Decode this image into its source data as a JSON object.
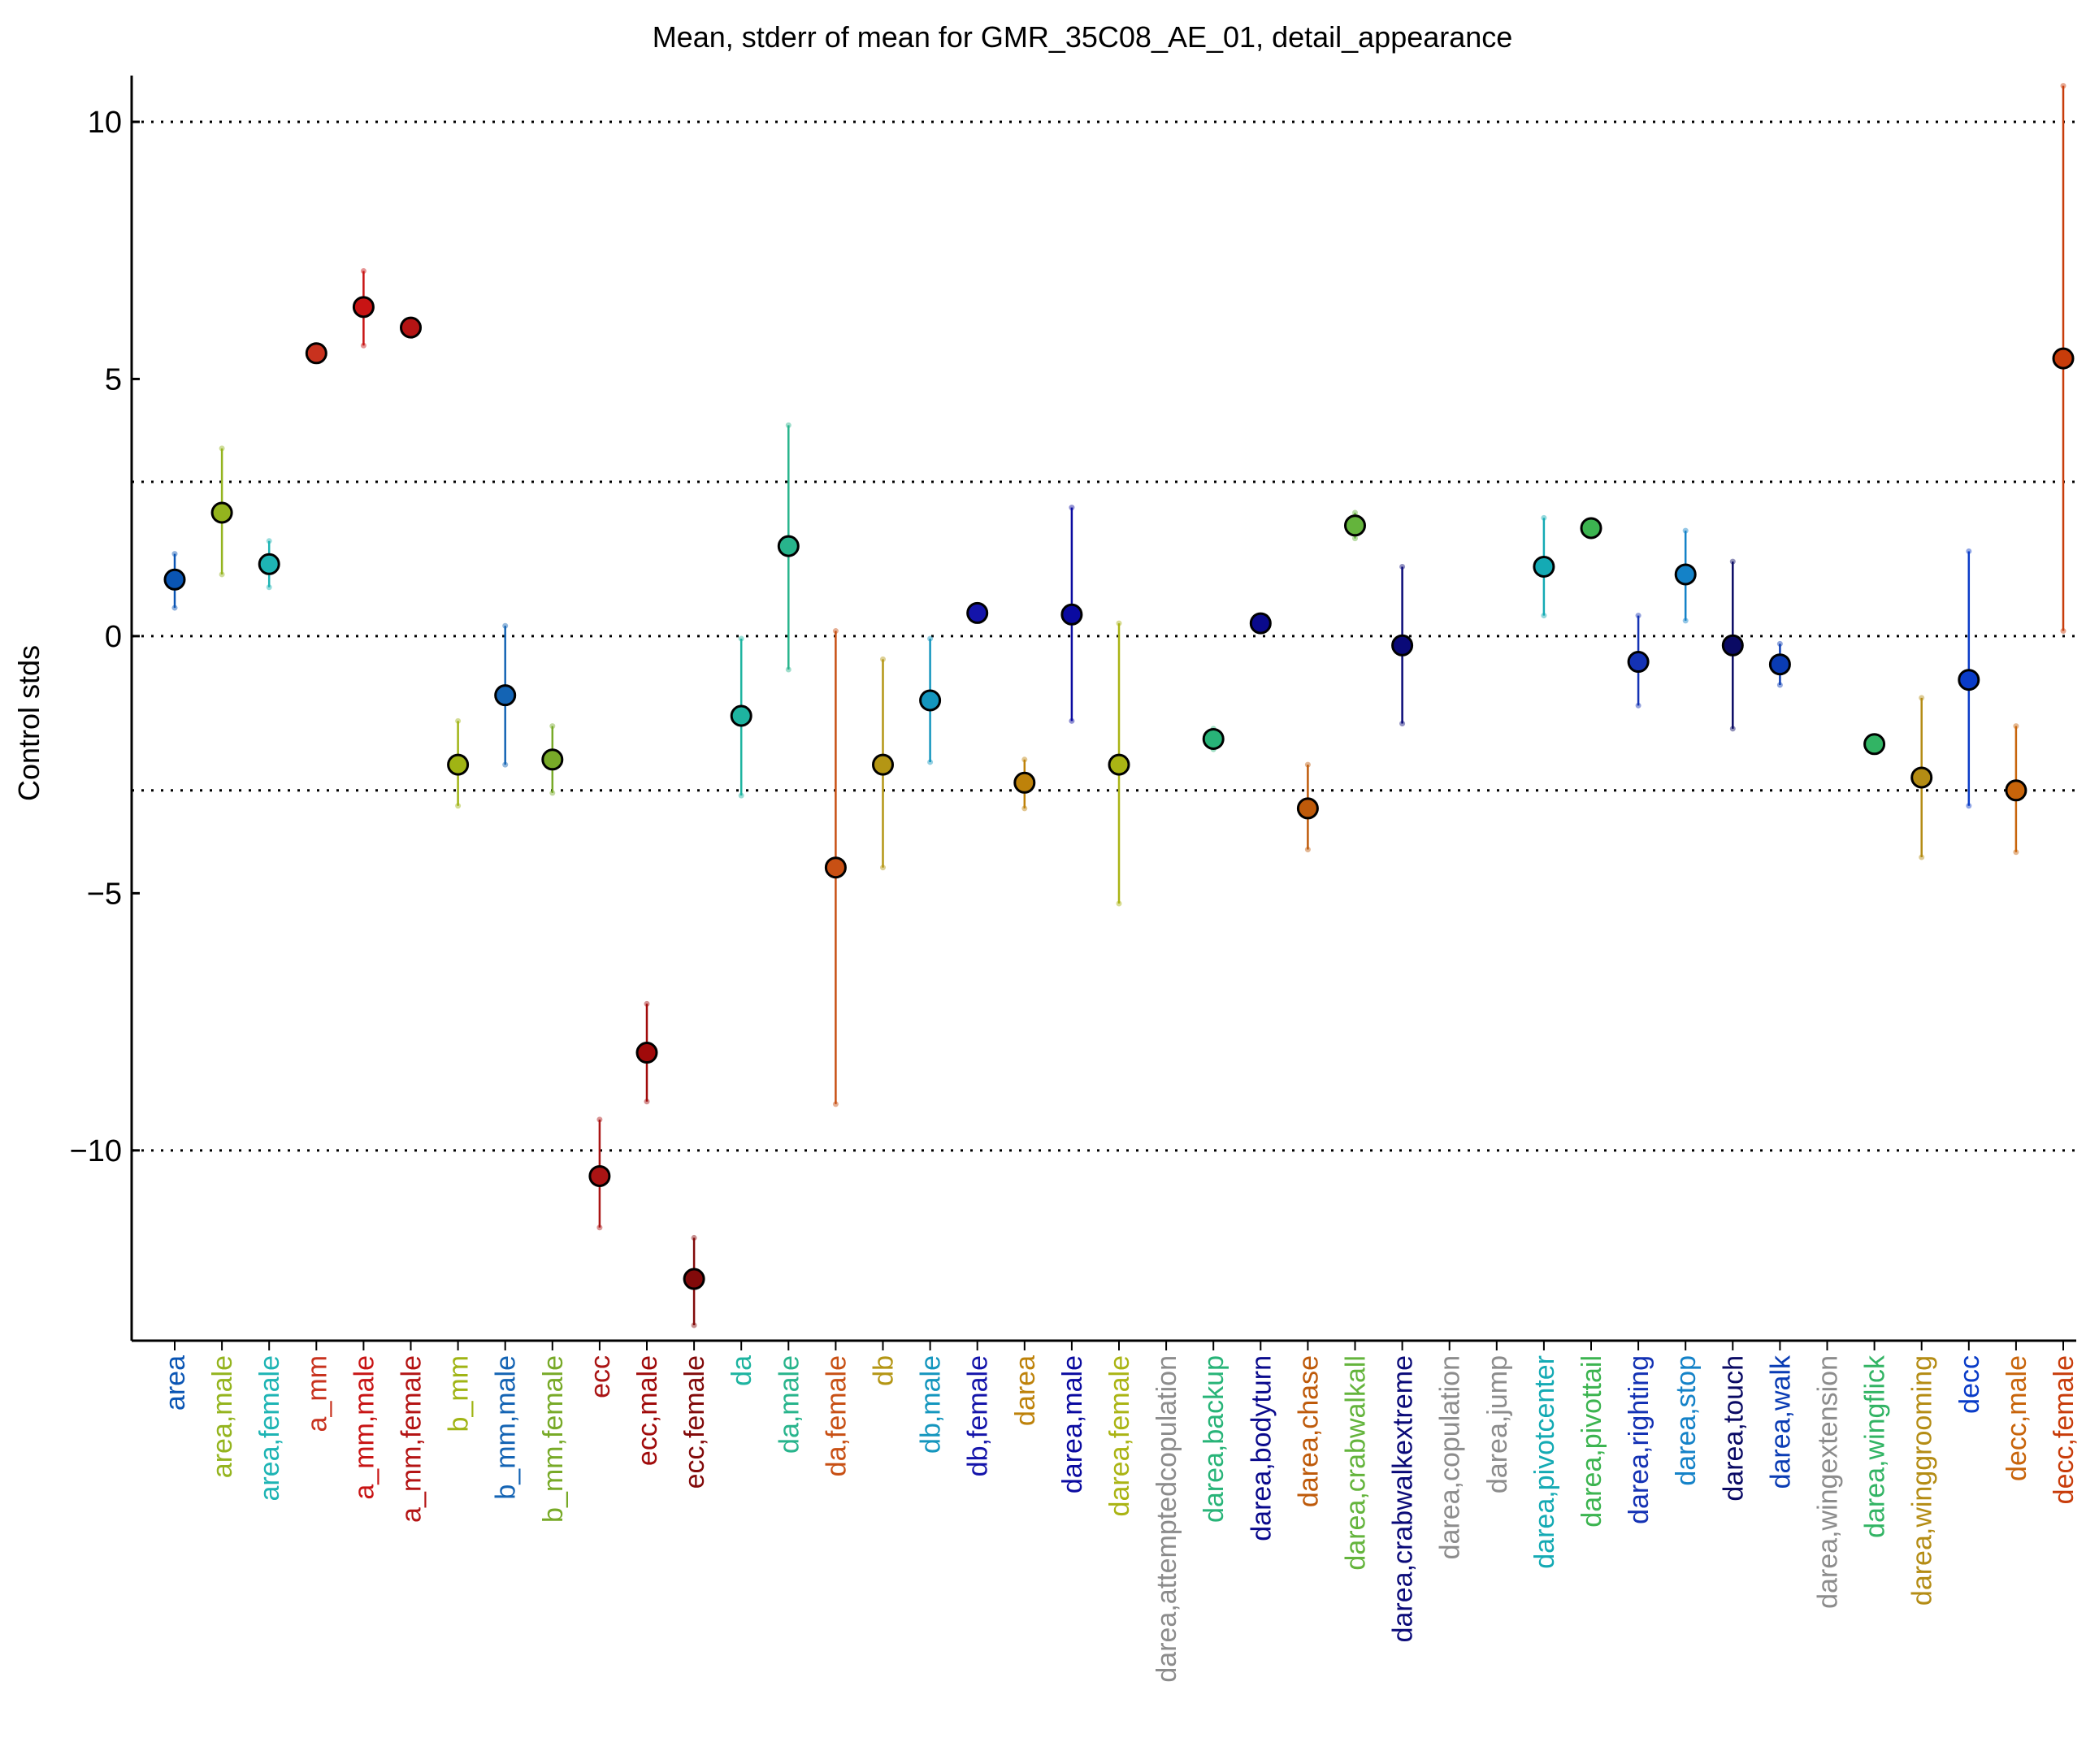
{
  "chart_data": {
    "type": "scatter",
    "title": "Mean, stderr of mean for GMR_35C08_AE_01, detail_appearance",
    "xlabel": "",
    "ylabel": "Control stds",
    "ylim": [
      -13.7,
      10.9
    ],
    "yticks": [
      10,
      5,
      0,
      -5,
      -10
    ],
    "ytick_labels": [
      "10",
      "5",
      "0",
      "−5",
      "−10"
    ],
    "reference_lines": [
      10,
      3,
      0,
      -3,
      -10
    ],
    "grid": false,
    "categories": [
      "area",
      "area,male",
      "area,female",
      "a_mm",
      "a_mm,male",
      "a_mm,female",
      "b_mm",
      "b_mm,male",
      "b_mm,female",
      "ecc",
      "ecc,male",
      "ecc,female",
      "da",
      "da,male",
      "da,female",
      "db",
      "db,male",
      "db,female",
      "darea",
      "darea,male",
      "darea,female",
      "darea,attemptedcopulation",
      "darea,backup",
      "darea,bodyturn",
      "darea,chase",
      "darea,crabwalkall",
      "darea,crabwalkextreme",
      "darea,copulation",
      "darea,jump",
      "darea,pivotcenter",
      "darea,pivottail",
      "darea,righting",
      "darea,stop",
      "darea,touch",
      "darea,walk",
      "darea,wingextension",
      "darea,wingflick",
      "darea,winggrooming",
      "decc",
      "decc,male",
      "decc,female"
    ],
    "means": [
      1.1,
      2.4,
      1.4,
      5.5,
      6.4,
      6.0,
      -2.5,
      -1.15,
      -2.4,
      -10.5,
      -8.1,
      -12.5,
      -1.55,
      1.75,
      -4.5,
      -2.5,
      -1.25,
      0.45,
      -2.85,
      0.42,
      -2.5,
      null,
      -2.0,
      0.25,
      -3.35,
      2.15,
      -0.18,
      null,
      null,
      1.35,
      2.1,
      -0.5,
      1.2,
      -0.18,
      -0.55,
      null,
      -2.1,
      -2.75,
      -0.85,
      -3.0,
      5.4
    ],
    "err_low": [
      0.55,
      1.2,
      0.95,
      null,
      5.65,
      null,
      -3.3,
      -2.5,
      -3.05,
      -11.5,
      -9.05,
      -13.4,
      -3.1,
      -0.65,
      -9.1,
      -4.5,
      -2.45,
      null,
      -3.35,
      -1.65,
      -5.2,
      null,
      -2.2,
      null,
      -4.15,
      1.9,
      -1.7,
      null,
      null,
      0.4,
      null,
      -1.35,
      0.3,
      -1.8,
      -0.95,
      null,
      null,
      -4.3,
      -3.3,
      -4.2,
      0.1
    ],
    "err_high": [
      1.6,
      3.65,
      1.85,
      null,
      7.1,
      null,
      -1.65,
      0.2,
      -1.75,
      -9.4,
      -7.15,
      -11.7,
      -0.05,
      4.1,
      0.1,
      -0.45,
      -0.05,
      null,
      -2.4,
      2.5,
      0.25,
      null,
      -1.8,
      null,
      -2.5,
      2.4,
      1.35,
      null,
      null,
      2.3,
      null,
      0.4,
      2.05,
      1.45,
      -0.15,
      null,
      null,
      -1.2,
      1.65,
      -1.75,
      10.7
    ],
    "colors": [
      "#0a55b4",
      "#94b41e",
      "#1eb4b4",
      "#c8321e",
      "#c81414",
      "#b41414",
      "#a0b414",
      "#1464b4",
      "#78aa28",
      "#aa1414",
      "#a00a0a",
      "#820a0a",
      "#1eb4a0",
      "#28b48c",
      "#c85014",
      "#b49614",
      "#1496be",
      "#1414aa",
      "#be820a",
      "#0a0aa0",
      "#aab414",
      "#8c8c8c",
      "#28b478",
      "#0a0a8c",
      "#be5a0a",
      "#64b43c",
      "#0a0a78",
      "#8c8c8c",
      "#8c8c8c",
      "#14aab4",
      "#3cb450",
      "#1432b4",
      "#1482c8",
      "#0a0a64",
      "#0a3cb4",
      "#8c8c8c",
      "#32b464",
      "#b48c14",
      "#0a3cc8",
      "#c8640a",
      "#c83c0a"
    ]
  }
}
